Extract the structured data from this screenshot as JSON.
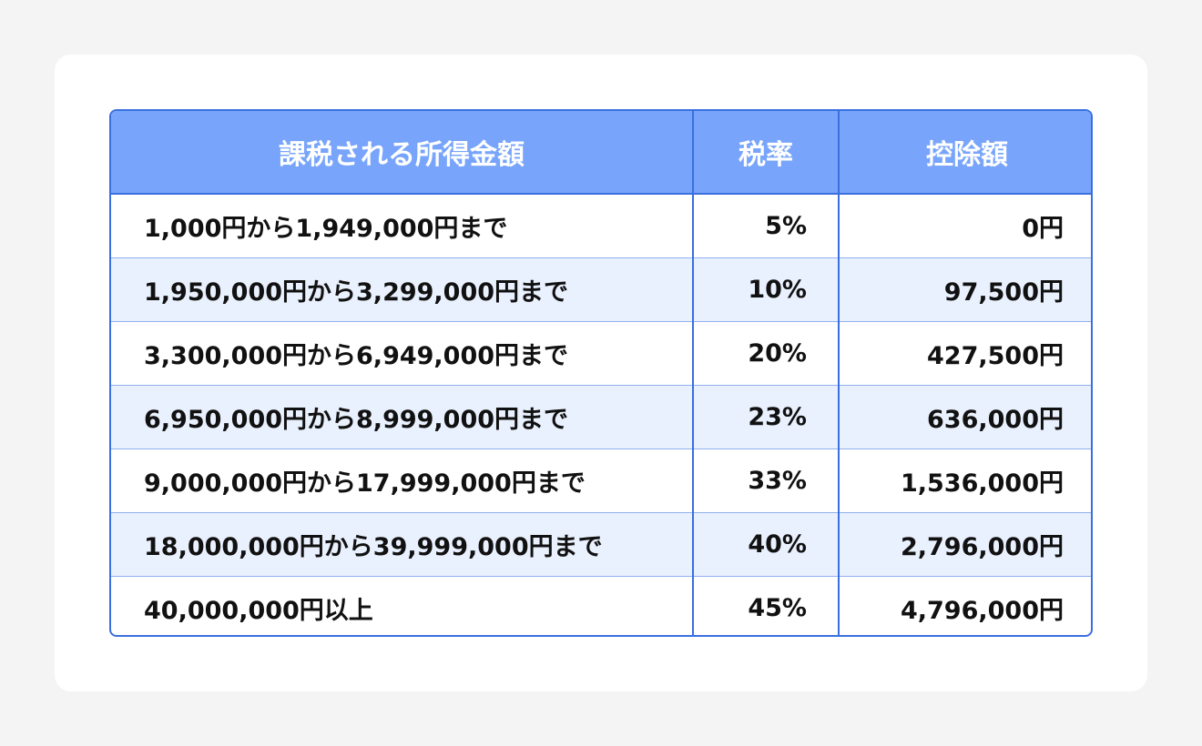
{
  "table": {
    "headers": [
      "課税される所得金額",
      "税率",
      "控除額"
    ],
    "rows": [
      [
        "1,000円から1,949,000円まで",
        "5%",
        "0円"
      ],
      [
        "1,950,000円から3,299,000円まで",
        "10%",
        "97,500円"
      ],
      [
        "3,300,000円から6,949,000円まで",
        "20%",
        "427,500円"
      ],
      [
        "6,950,000円から8,999,000円まで",
        "23%",
        "636,000円"
      ],
      [
        "9,000,000円から17,999,000円まで",
        "33%",
        "1,536,000円"
      ],
      [
        "18,000,000円から39,999,000円まで",
        "40%",
        "2,796,000円"
      ],
      [
        "40,000,000円以上",
        "45%",
        "4,796,000円"
      ]
    ]
  }
}
